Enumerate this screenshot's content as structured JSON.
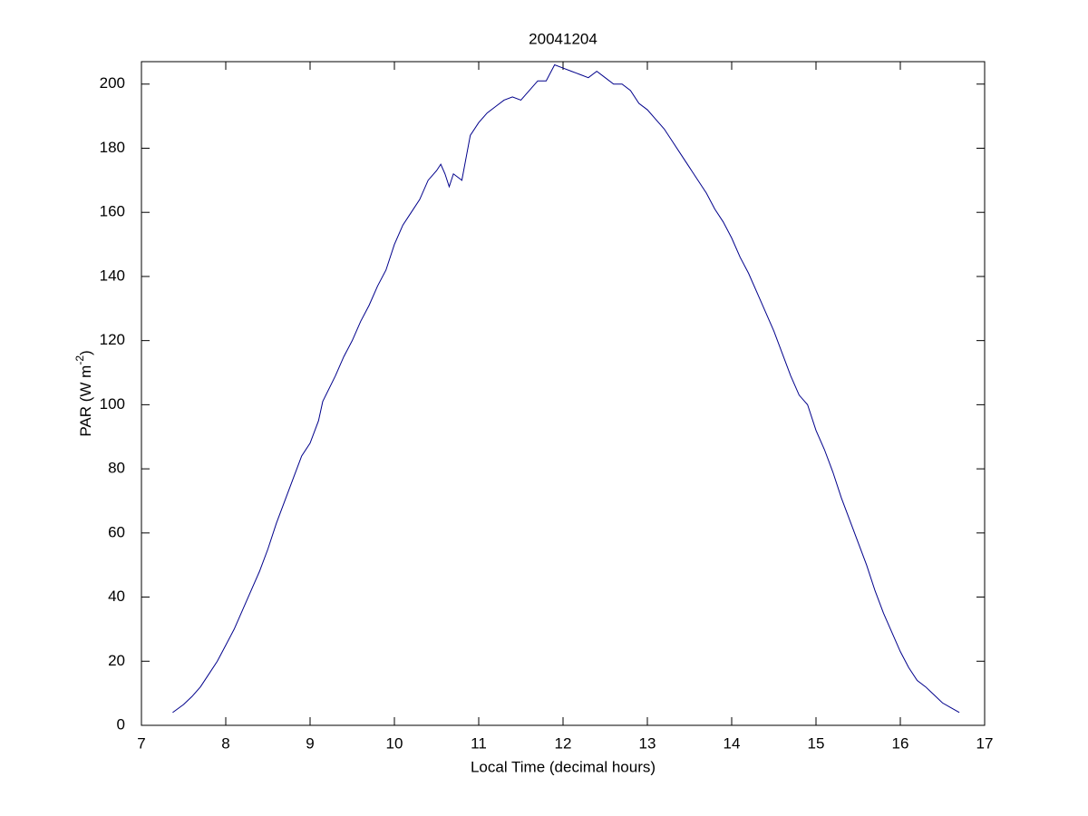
{
  "chart_data": {
    "type": "line",
    "title": "20041204",
    "xlabel": "Local Time (decimal hours)",
    "ylabel": [
      "PAR (W m",
      "-2",
      ")"
    ],
    "color": "#00008b",
    "xlim": [
      7,
      17
    ],
    "xticks": [
      7,
      8,
      9,
      10,
      11,
      12,
      13,
      14,
      15,
      16,
      17
    ],
    "ylim": [
      0,
      207
    ],
    "yticks": [
      0,
      20,
      40,
      60,
      80,
      100,
      120,
      140,
      160,
      180,
      200
    ],
    "x": [
      7.37,
      7.5,
      7.6,
      7.7,
      7.8,
      7.9,
      8.0,
      8.1,
      8.2,
      8.3,
      8.4,
      8.5,
      8.6,
      8.7,
      8.8,
      8.9,
      9.0,
      9.1,
      9.15,
      9.3,
      9.4,
      9.5,
      9.6,
      9.7,
      9.8,
      9.9,
      10.0,
      10.1,
      10.2,
      10.3,
      10.4,
      10.5,
      10.55,
      10.6,
      10.65,
      10.7,
      10.8,
      10.85,
      10.9,
      11.0,
      11.1,
      11.2,
      11.3,
      11.4,
      11.5,
      11.6,
      11.7,
      11.8,
      11.9,
      12.0,
      12.1,
      12.2,
      12.3,
      12.4,
      12.5,
      12.6,
      12.7,
      12.8,
      12.9,
      13.0,
      13.1,
      13.2,
      13.3,
      13.4,
      13.5,
      13.6,
      13.7,
      13.8,
      13.9,
      14.0,
      14.1,
      14.2,
      14.3,
      14.4,
      14.5,
      14.6,
      14.7,
      14.8,
      14.9,
      15.0,
      15.1,
      15.2,
      15.3,
      15.4,
      15.5,
      15.6,
      15.7,
      15.8,
      15.9,
      16.0,
      16.1,
      16.2,
      16.3,
      16.4,
      16.5,
      16.6,
      16.7
    ],
    "values": [
      4,
      6.5,
      9,
      12,
      16,
      20,
      25,
      30,
      36,
      42,
      48,
      55,
      63,
      70,
      77,
      84,
      88,
      95,
      101,
      109,
      115,
      120,
      126,
      131,
      137,
      142,
      150,
      156,
      160,
      164,
      170,
      173,
      175,
      172,
      168,
      172,
      170,
      177,
      184,
      188,
      191,
      193,
      195,
      196,
      195,
      198,
      201,
      201,
      206,
      205,
      204,
      203,
      202,
      204,
      202,
      200,
      200,
      198,
      194,
      192,
      189,
      186,
      182,
      178,
      174,
      170,
      166,
      161,
      157,
      152,
      146,
      141,
      135,
      129,
      123,
      116,
      109,
      103,
      100,
      92,
      86,
      79,
      71,
      64,
      57,
      50,
      42,
      35,
      29,
      23,
      18,
      14,
      12,
      9.5,
      7,
      5.5,
      4
    ],
    "grid": false
  }
}
